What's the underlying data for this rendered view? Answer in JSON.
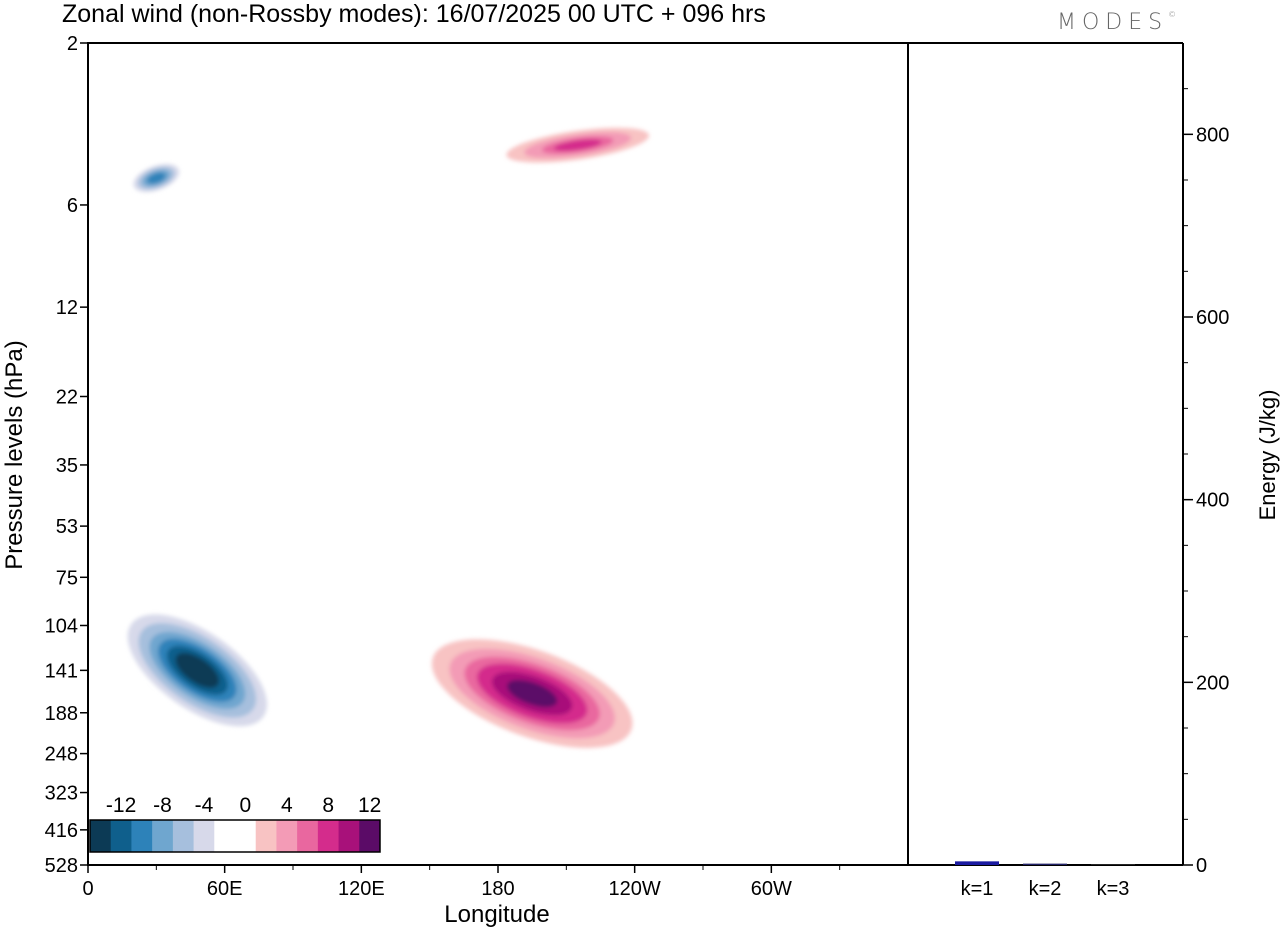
{
  "header": {
    "title": "Zonal wind (non-Rossby modes):  16/07/2025  00 UTC  + 096 hrs",
    "logo": "MODES"
  },
  "chart_data": [
    {
      "type": "heatmap",
      "title": "Zonal wind (non-Rossby modes)",
      "xlabel": "Longitude",
      "ylabel": "Pressure levels (hPa)",
      "x_ticks": [
        "0",
        "60E",
        "120E",
        "180",
        "120W",
        "60W"
      ],
      "y_ticks": [
        "2",
        "6",
        "12",
        "22",
        "35",
        "53",
        "75",
        "104",
        "141",
        "188",
        "248",
        "323",
        "416",
        "528"
      ],
      "colorbar": {
        "labels": [
          "-12",
          "-8",
          "-4",
          "0",
          "4",
          "8",
          "12"
        ],
        "colors": [
          "#0c3a55",
          "#0f5f8c",
          "#2d82b9",
          "#6fa6cf",
          "#a6bfdd",
          "#d7d9ea",
          "#ffffff",
          "#ffffff",
          "#f8c3c3",
          "#f39bb6",
          "#e9679f",
          "#d42c8c",
          "#a8117a",
          "#5b0b67"
        ]
      },
      "features": [
        {
          "level": -14,
          "lon": 48,
          "p": 141,
          "note": "strong easterly core near 50-90E, 100-190 hPa"
        },
        {
          "level": 12,
          "lon": 195,
          "p": 165,
          "note": "westerly core near 175-215E, 110-250 hPa"
        },
        {
          "level": 9,
          "lon": 215,
          "p": 4,
          "note": "upper-level westerlies near 200-230E"
        },
        {
          "level": -9,
          "lon": 30,
          "p": 5,
          "note": "upper-level easterlies near 20-40E"
        }
      ]
    },
    {
      "type": "bar",
      "ylabel": "Energy (J/kg)",
      "categories": [
        "k=1",
        "k=2",
        "k=3"
      ],
      "values": [
        4,
        1.5,
        0.8
      ],
      "ylim": [
        0,
        900
      ],
      "y_ticks": [
        "0",
        "200",
        "400",
        "600",
        "800"
      ],
      "bar_colors": [
        "#1a1aa0",
        "#222266",
        "#333333"
      ]
    }
  ]
}
